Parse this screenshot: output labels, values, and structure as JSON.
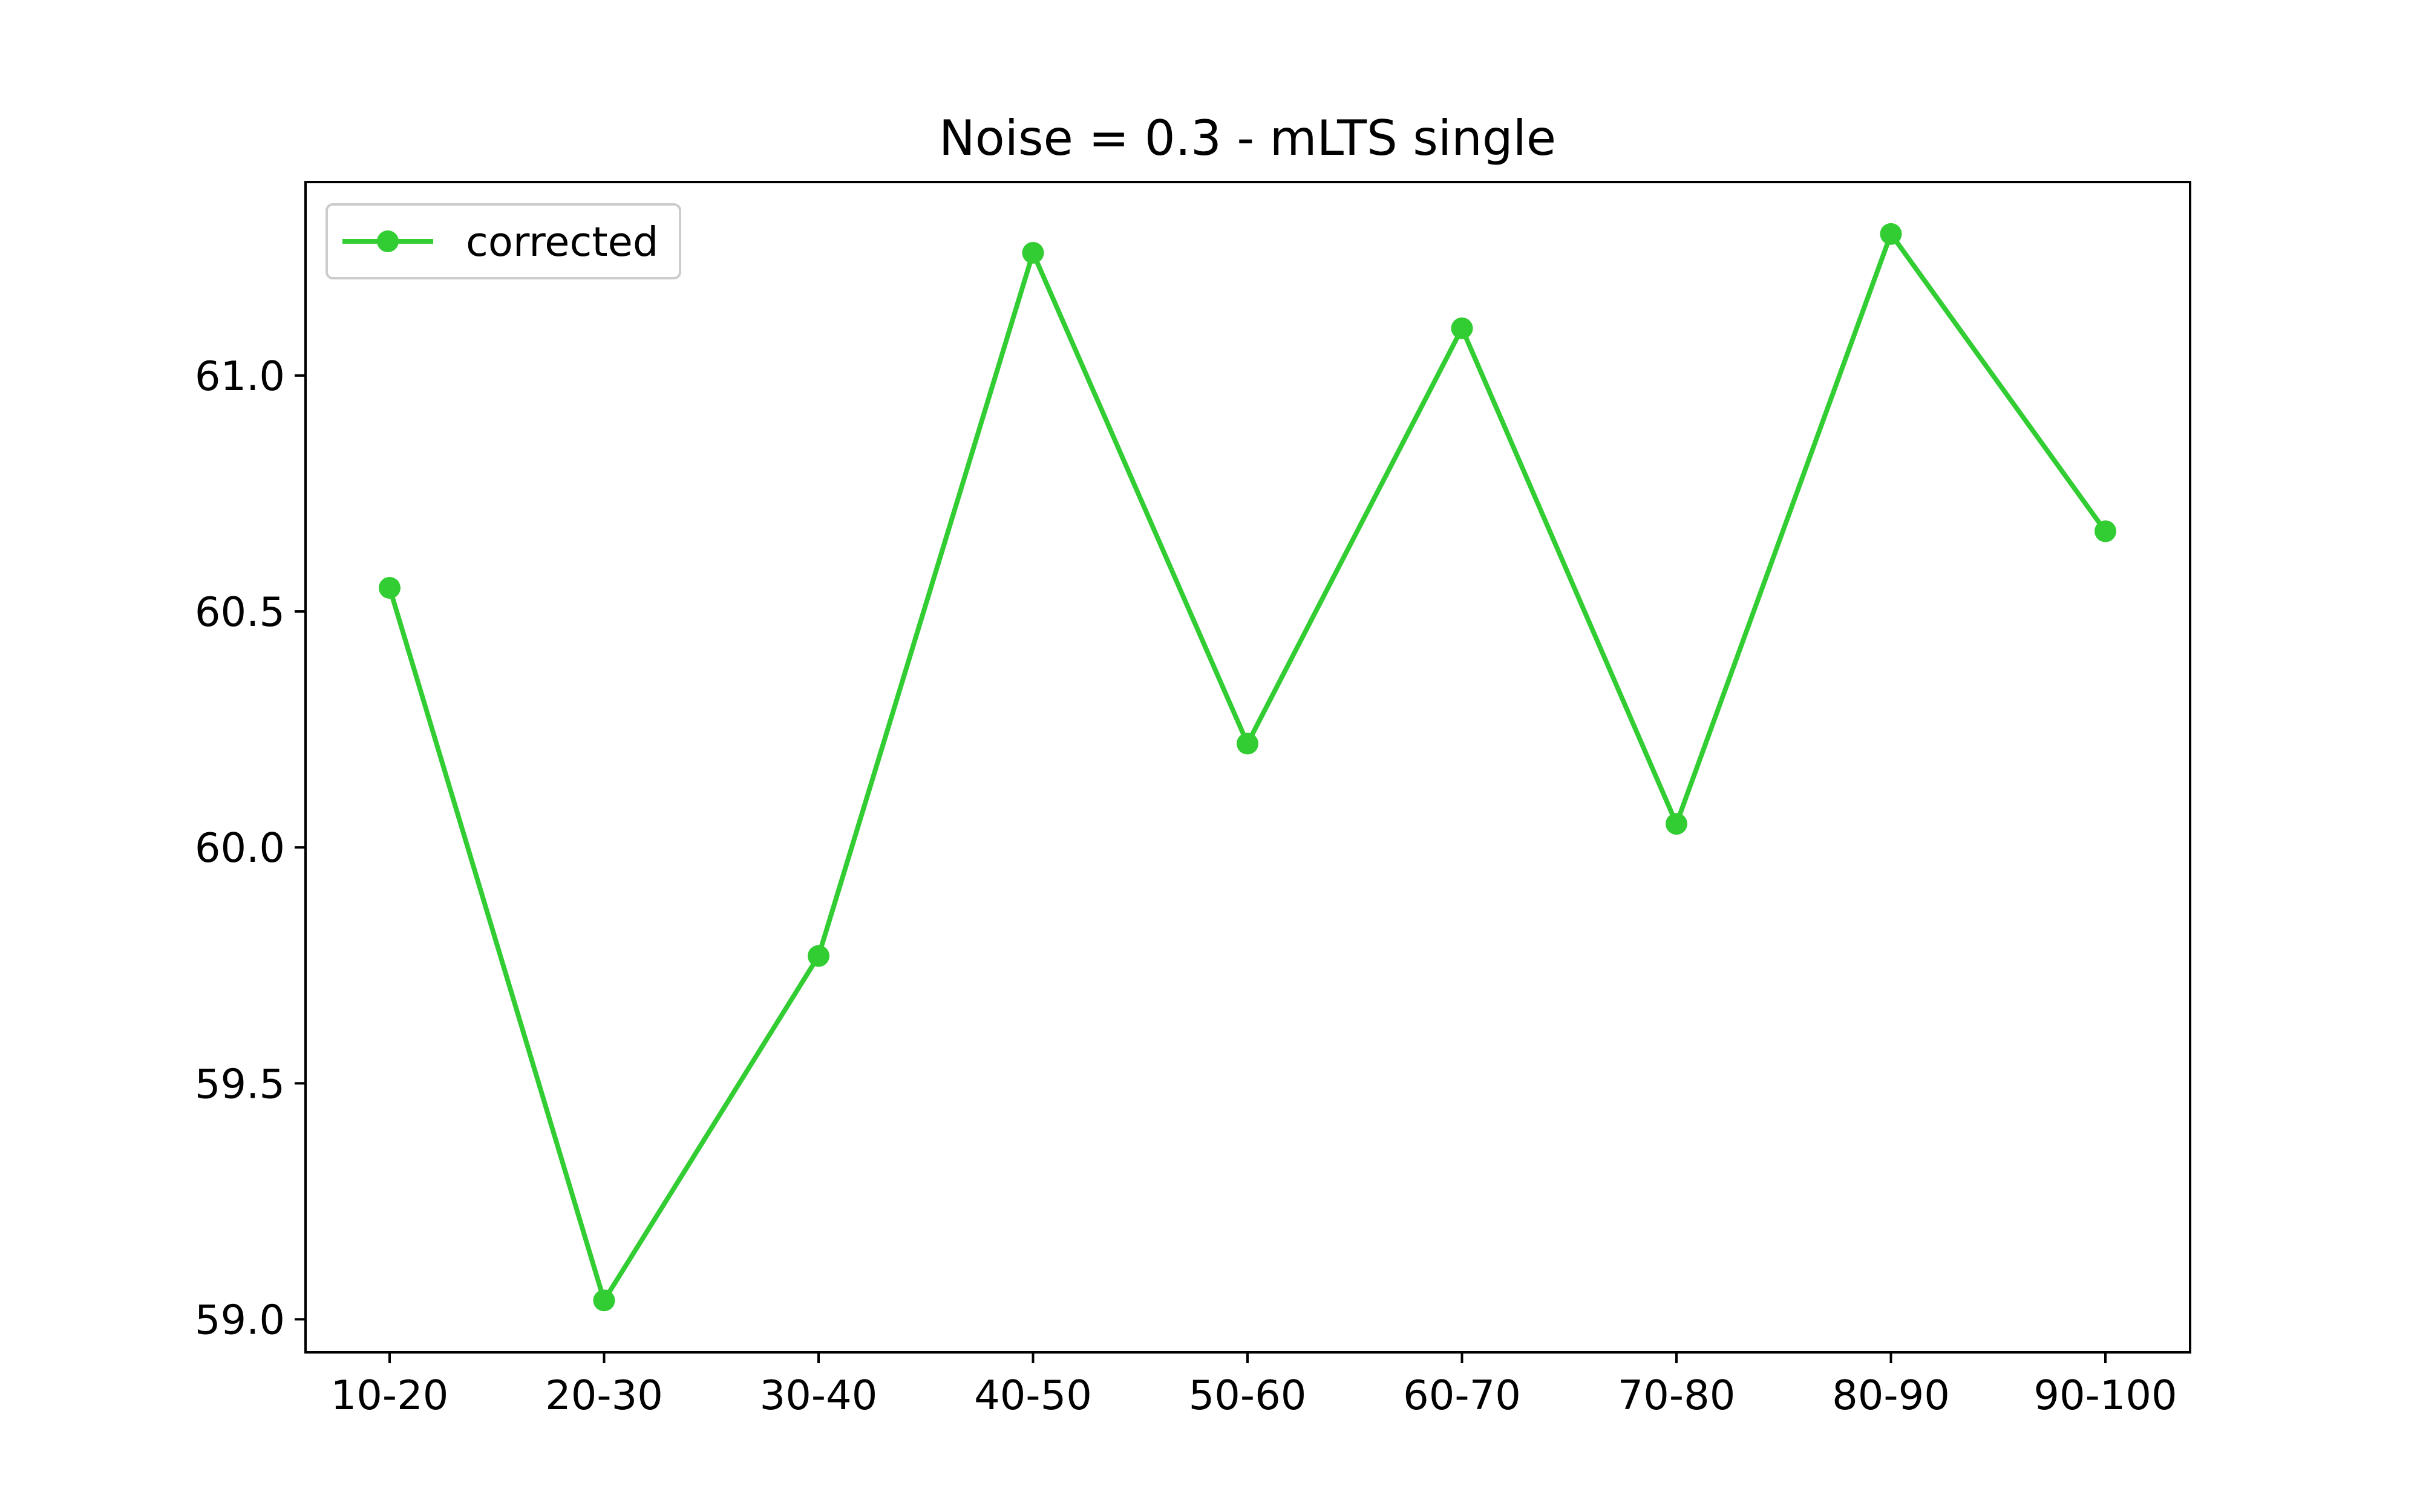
{
  "chart_data": {
    "type": "line",
    "title": "Noise = 0.3 - mLTS single",
    "xlabel": "",
    "ylabel": "",
    "categories": [
      "10-20",
      "20-30",
      "30-40",
      "40-50",
      "50-60",
      "60-70",
      "70-80",
      "80-90",
      "90-100"
    ],
    "series": [
      {
        "name": "corrected",
        "color": "#32cd32",
        "marker": "circle",
        "values": [
          60.55,
          59.04,
          59.77,
          61.26,
          60.22,
          61.1,
          60.05,
          61.3,
          60.67
        ]
      }
    ],
    "ylim": [
      58.93,
      61.41
    ],
    "yticks": [
      59.0,
      59.5,
      60.0,
      60.5,
      61.0
    ],
    "ytick_labels": [
      "59.0",
      "59.5",
      "60.0",
      "60.5",
      "61.0"
    ],
    "grid": false,
    "legend_position": "upper left"
  }
}
